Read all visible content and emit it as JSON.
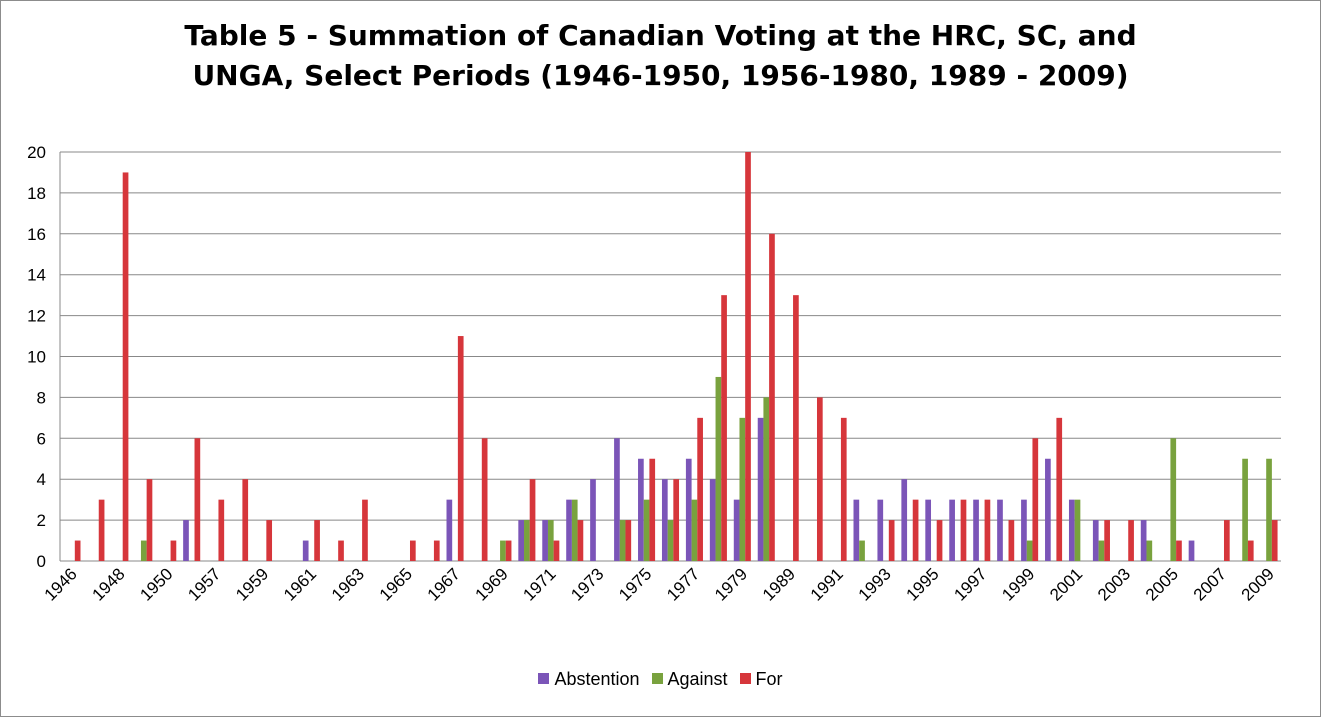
{
  "chart_data": {
    "type": "bar",
    "title_line1": "Table 5 - Summation of Canadian Voting at the HRC, SC, and",
    "title_line2": "UNGA, Select Periods (1946-1950, 1956-1980, 1989 - 2009)",
    "xlabel": "",
    "ylabel": "",
    "ylim": [
      0,
      20
    ],
    "yticks": [
      "0",
      "2",
      "4",
      "6",
      "8",
      "10",
      "12",
      "14",
      "16",
      "18",
      "20"
    ],
    "grid": true,
    "legend_position": "bottom",
    "categories": [
      "1946",
      "1947",
      "1948",
      "1949",
      "1950",
      "1956",
      "1957",
      "1958",
      "1959",
      "1960",
      "1961",
      "1962",
      "1963",
      "1964",
      "1965",
      "1966",
      "1967",
      "1968",
      "1969",
      "1970",
      "1971",
      "1972",
      "1973",
      "1974",
      "1975",
      "1976",
      "1977",
      "1978",
      "1979",
      "1980",
      "1989",
      "1990",
      "1991",
      "1992",
      "1993",
      "1994",
      "1995",
      "1996",
      "1997",
      "1998",
      "1999",
      "2000",
      "2001",
      "2002",
      "2003",
      "2004",
      "2005",
      "2006",
      "2007",
      "2008",
      "2009"
    ],
    "category_labels": [
      "1946",
      "",
      "1948",
      "",
      "1950",
      "",
      "1957",
      "",
      "1959",
      "",
      "1961",
      "",
      "1963",
      "",
      "1965",
      "",
      "1967",
      "",
      "1969",
      "",
      "1971",
      "",
      "1973",
      "",
      "1975",
      "",
      "1977",
      "",
      "1979",
      "",
      "1989",
      "",
      "1991",
      "",
      "1993",
      "",
      "1995",
      "",
      "1997",
      "",
      "1999",
      "",
      "2001",
      "",
      "2003",
      "",
      "2005",
      "",
      "2007",
      "",
      "2009"
    ],
    "series": [
      {
        "name": "Abstention",
        "color": "#7b55b8",
        "values": [
          0,
          0,
          0,
          0,
          0,
          2,
          0,
          0,
          0,
          0,
          1,
          0,
          0,
          0,
          0,
          0,
          3,
          0,
          0,
          2,
          2,
          3,
          4,
          6,
          5,
          4,
          5,
          4,
          3,
          7,
          0,
          0,
          0,
          3,
          3,
          4,
          3,
          3,
          3,
          3,
          3,
          5,
          3,
          2,
          0,
          2,
          0,
          1,
          0,
          0,
          0
        ]
      },
      {
        "name": "Against",
        "color": "#79a23e",
        "values": [
          0,
          0,
          0,
          1,
          0,
          0,
          0,
          0,
          0,
          0,
          0,
          0,
          0,
          0,
          0,
          0,
          0,
          0,
          1,
          2,
          2,
          3,
          0,
          2,
          3,
          2,
          3,
          9,
          7,
          8,
          0,
          0,
          0,
          1,
          0,
          0,
          0,
          0,
          0,
          0,
          1,
          0,
          3,
          1,
          0,
          1,
          6,
          0,
          0,
          5,
          5
        ]
      },
      {
        "name": "For",
        "color": "#d6363b",
        "values": [
          1,
          3,
          19,
          4,
          1,
          6,
          3,
          4,
          2,
          0,
          2,
          1,
          3,
          0,
          1,
          1,
          11,
          6,
          1,
          4,
          1,
          2,
          0,
          2,
          5,
          4,
          7,
          13,
          20,
          16,
          13,
          8,
          7,
          0,
          2,
          3,
          2,
          3,
          3,
          2,
          6,
          7,
          0,
          2,
          2,
          0,
          1,
          0,
          2,
          1,
          2
        ]
      }
    ]
  }
}
